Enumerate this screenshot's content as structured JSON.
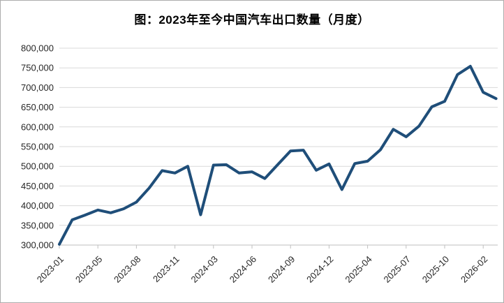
{
  "chart": {
    "title": "图：2023年至今中国汽车出口数量（月度）"
  },
  "chart_data": {
    "type": "line",
    "title": "图：2023年至今中国汽车出口数量（月度）",
    "xlabel": "",
    "ylabel": "",
    "legend": "none",
    "grid": true,
    "ylim": [
      300000,
      800000
    ],
    "y_ticks": [
      300000,
      350000,
      400000,
      450000,
      500000,
      550000,
      600000,
      650000,
      700000,
      750000,
      800000
    ],
    "y_tick_labels": [
      "300,000",
      "350,000",
      "400,000",
      "450,000",
      "500,000",
      "550,000",
      "600,000",
      "650,000",
      "700,000",
      "750,000",
      "800,000"
    ],
    "x": [
      "2023-01",
      "2023-03",
      "2023-04",
      "2023-05",
      "2023-06",
      "2023-07",
      "2023-08",
      "2023-09",
      "2023-10",
      "2023-11",
      "2023-12",
      "2024-02",
      "2024-03",
      "2024-04",
      "2024-05",
      "2024-06",
      "2024-07",
      "2024-08",
      "2024-09",
      "2024-10",
      "2024-11",
      "2024-12",
      "2025-02",
      "2025-03",
      "2025-04",
      "2025-05",
      "2025-06",
      "2025-07",
      "2025-08",
      "2025-09",
      "2025-10",
      "2025-11",
      "2025-12",
      "2026-02",
      "2026-03"
    ],
    "values": [
      302000,
      364000,
      376000,
      389000,
      382000,
      392000,
      409000,
      445000,
      489000,
      483000,
      500000,
      377000,
      503000,
      504000,
      483000,
      486000,
      469000,
      504000,
      539000,
      541000,
      490000,
      506000,
      441000,
      507000,
      513000,
      542000,
      594000,
      575000,
      602000,
      651000,
      665000,
      733000,
      754000,
      688000,
      672000
    ],
    "x_tick_indices": [
      0,
      3,
      6,
      9,
      12,
      15,
      18,
      21,
      24,
      27,
      30,
      33
    ],
    "x_tick_labels": [
      "2023-01",
      "2023-05",
      "2023-08",
      "2023-11",
      "2024-03",
      "2024-06",
      "2024-09",
      "2024-12",
      "2025-04",
      "2025-07",
      "2025-10",
      "2026-02"
    ],
    "line_color": "#1F4E79",
    "gridline_color": "#D9D9D9",
    "axis_color": "#BFBFBF",
    "text_color": "#262626"
  }
}
